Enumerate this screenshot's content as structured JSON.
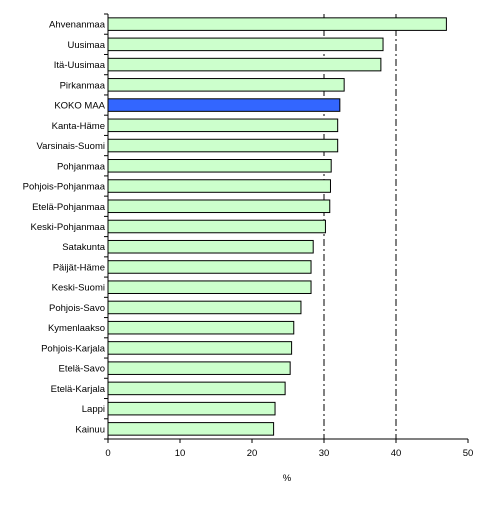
{
  "chart_data": {
    "type": "bar",
    "orientation": "horizontal",
    "categories": [
      "Ahvenanmaa",
      "Uusimaa",
      "Itä-Uusimaa",
      "Pirkanmaa",
      "KOKO MAA",
      "Kanta-Häme",
      "Varsinais-Suomi",
      "Pohjanmaa",
      "Pohjois-Pohjanmaa",
      "Etelä-Pohjanmaa",
      "Keski-Pohjanmaa",
      "Satakunta",
      "Päijät-Häme",
      "Keski-Suomi",
      "Pohjois-Savo",
      "Kymenlaakso",
      "Pohjois-Karjala",
      "Etelä-Savo",
      "Etelä-Karjala",
      "Lappi",
      "Kainuu"
    ],
    "values": [
      47.0,
      38.2,
      37.9,
      32.8,
      32.2,
      31.9,
      31.9,
      31.0,
      30.9,
      30.8,
      30.2,
      28.5,
      28.2,
      28.2,
      26.8,
      25.8,
      25.5,
      25.3,
      24.6,
      23.2,
      23.0
    ],
    "highlight_category": "KOKO MAA",
    "xlabel": "%",
    "xlim": [
      0,
      50
    ],
    "xticks": [
      0,
      10,
      20,
      30,
      40,
      50
    ],
    "reference_lines": [
      30,
      40
    ],
    "grid": false,
    "legend": "none",
    "colors": {
      "bar_fill": "#ccffcc",
      "highlight_fill": "#3366ff",
      "bar_stroke": "#000000",
      "reference_line": "#000000"
    }
  }
}
